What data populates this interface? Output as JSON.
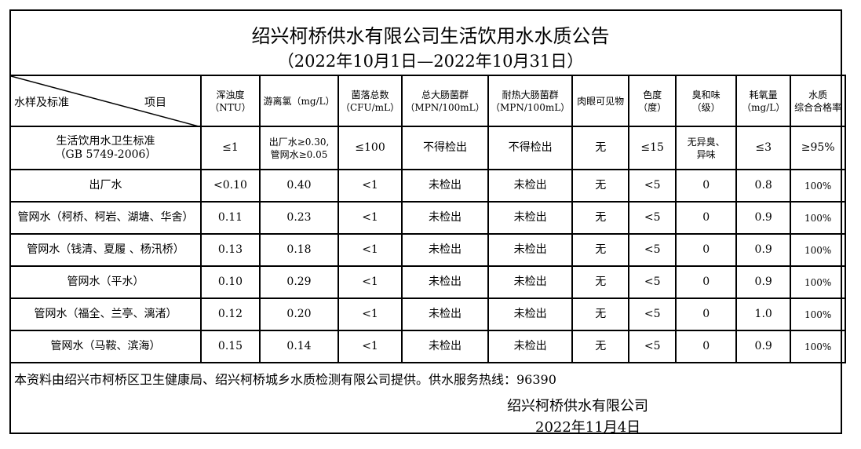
{
  "title": "绍兴柯桥供水有限公司生活饮用水水质公告",
  "subtitle": "（2022年10月1日—2022年10月31日）",
  "header": {
    "corner_left": "水样及标准",
    "corner_right": "项目",
    "columns": [
      [
        "浑浊度",
        "（NTU）"
      ],
      [
        "游离氯（mg/L）"
      ],
      [
        "菌落总数",
        "（CFU/mL）"
      ],
      [
        "总大肠菌群",
        "（MPN/100mL）"
      ],
      [
        "耐热大肠菌群",
        "（MPN/100mL）"
      ],
      [
        "肉眼可见物"
      ],
      [
        "色度",
        "（度）"
      ],
      [
        "臭和味",
        "（级）"
      ],
      [
        "耗氧量",
        "（mg/L）"
      ],
      [
        "水质",
        "综合合格率"
      ]
    ]
  },
  "standard": {
    "name": [
      "生活饮用水卫生标准",
      "（GB 5749-2006）"
    ],
    "values": [
      [
        "≤1"
      ],
      [
        "出厂水≥0.30,",
        "管网水≥0.05"
      ],
      [
        "≤100"
      ],
      [
        "不得检出"
      ],
      [
        "不得检出"
      ],
      [
        "无"
      ],
      [
        "≤15"
      ],
      [
        "无异臭、",
        "异味"
      ],
      [
        "≤3"
      ],
      [
        "≥95%"
      ]
    ]
  },
  "rows": [
    {
      "name": "出厂水",
      "values": [
        "<0.10",
        "0.40",
        "<1",
        "未检出",
        "未检出",
        "无",
        "<5",
        "0",
        "0.8",
        "100%"
      ]
    },
    {
      "name": "管网水（柯桥、柯岩、湖塘、华舍）",
      "values": [
        "0.11",
        "0.23",
        "<1",
        "未检出",
        "未检出",
        "无",
        "<5",
        "0",
        "0.9",
        "100%"
      ]
    },
    {
      "name": "管网水（钱清、夏履 、杨汛桥）",
      "values": [
        "0.13",
        "0.18",
        "<1",
        "未检出",
        "未检出",
        "无",
        "<5",
        "0",
        "0.9",
        "100%"
      ]
    },
    {
      "name": "管网水（平水）",
      "values": [
        "0.10",
        "0.29",
        "<1",
        "未检出",
        "未检出",
        "无",
        "<5",
        "0",
        "0.9",
        "100%"
      ]
    },
    {
      "name": "管网水（福全、兰亭、漓渚）",
      "values": [
        "0.12",
        "0.20",
        "<1",
        "未检出",
        "未检出",
        "无",
        "<5",
        "0",
        "1.0",
        "100%"
      ]
    },
    {
      "name": "管网水（马鞍、滨海）",
      "values": [
        "0.15",
        "0.14",
        "<1",
        "未检出",
        "未检出",
        "无",
        "<5",
        "0",
        "0.9",
        "100%"
      ]
    }
  ],
  "footer": {
    "note": "本资料由绍兴市柯桥区卫生健康局、绍兴柯桥城乡水质检测有限公司提供。供水服务热线：96390",
    "company": "绍兴柯桥供水有限公司",
    "date": "2022年11月4日"
  }
}
